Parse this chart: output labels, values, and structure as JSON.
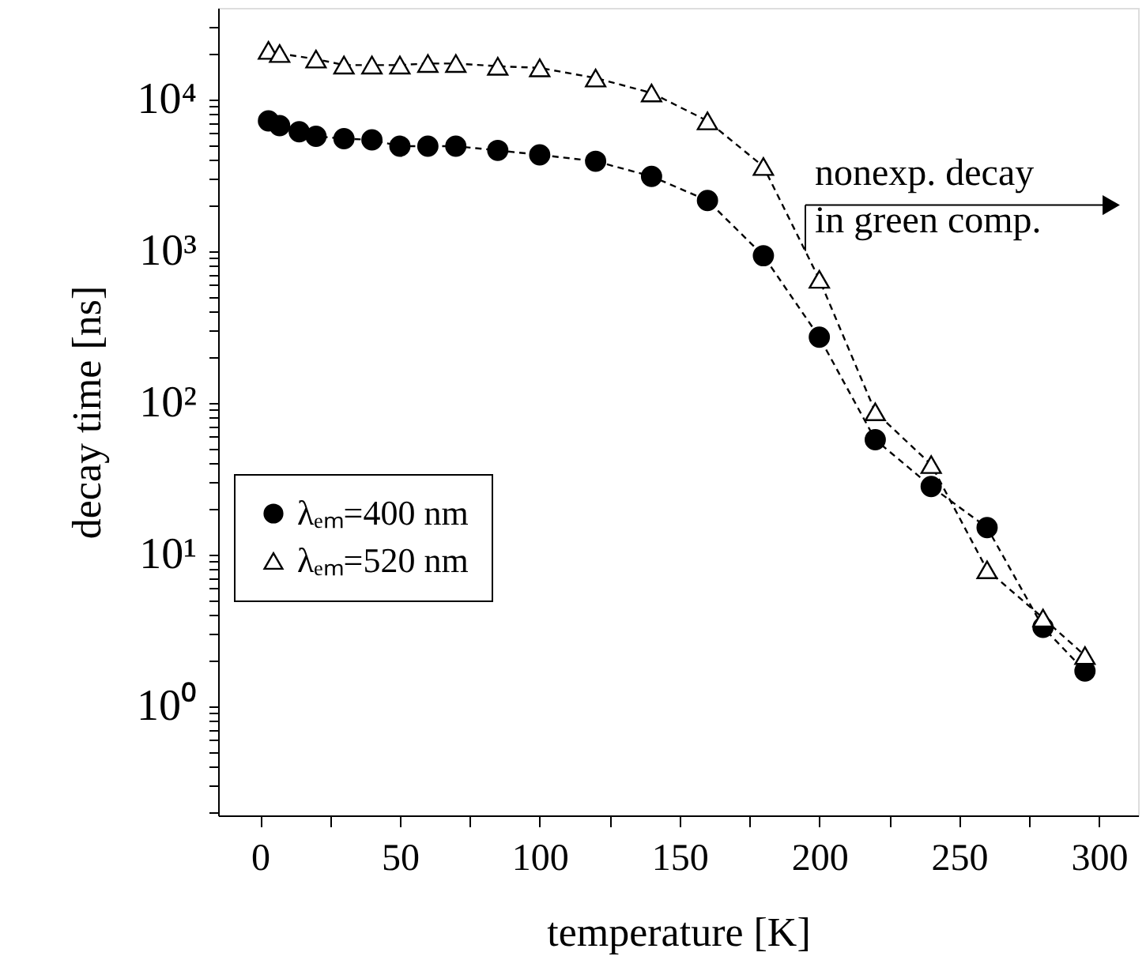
{
  "chart_data": {
    "type": "line",
    "xlabel": "temperature [K]",
    "ylabel": "decay time [ns]",
    "log": "y",
    "grid": false,
    "legend": "left",
    "line_style": "dashed",
    "xlim": [
      -15,
      314
    ],
    "xticks": [
      0,
      {
        "value": 25,
        "label": null
      },
      50,
      {
        "value": 75,
        "label": null
      },
      100,
      {
        "value": 125,
        "label": null
      },
      150,
      {
        "value": 175,
        "label": null
      },
      200,
      {
        "value": 225,
        "label": null
      },
      250,
      {
        "value": 275,
        "label": null
      },
      300
    ],
    "ylim": [
      0.19,
      40000
    ],
    "yticks": [
      {
        "value": 0.2,
        "label": null
      },
      {
        "value": 0.3,
        "label": null
      },
      {
        "value": 0.4,
        "label": null
      },
      {
        "value": 0.5,
        "label": null
      },
      {
        "value": 0.6,
        "label": null
      },
      {
        "value": 0.7,
        "label": null
      },
      {
        "value": 0.8,
        "label": null
      },
      {
        "value": 0.9,
        "label": null
      },
      {
        "value": 1,
        "label": "10⁰"
      },
      {
        "value": 2,
        "label": null
      },
      {
        "value": 3,
        "label": null
      },
      {
        "value": 4,
        "label": null
      },
      {
        "value": 5,
        "label": null
      },
      {
        "value": 6,
        "label": null
      },
      {
        "value": 7,
        "label": null
      },
      {
        "value": 8,
        "label": null
      },
      {
        "value": 9,
        "label": null
      },
      {
        "value": 10,
        "label": "10¹"
      },
      {
        "value": 20,
        "label": null
      },
      {
        "value": 30,
        "label": null
      },
      {
        "value": 40,
        "label": null
      },
      {
        "value": 50,
        "label": null
      },
      {
        "value": 60,
        "label": null
      },
      {
        "value": 70,
        "label": null
      },
      {
        "value": 80,
        "label": null
      },
      {
        "value": 90,
        "label": null
      },
      {
        "value": 100,
        "label": "10²"
      },
      {
        "value": 200,
        "label": null
      },
      {
        "value": 300,
        "label": null
      },
      {
        "value": 400,
        "label": null
      },
      {
        "value": 500,
        "label": null
      },
      {
        "value": 600,
        "label": null
      },
      {
        "value": 700,
        "label": null
      },
      {
        "value": 800,
        "label": null
      },
      {
        "value": 900,
        "label": null
      },
      {
        "value": 1000,
        "label": "10³"
      },
      {
        "value": 2000,
        "label": null
      },
      {
        "value": 3000,
        "label": null
      },
      {
        "value": 4000,
        "label": null
      },
      {
        "value": 5000,
        "label": null
      },
      {
        "value": 6000,
        "label": null
      },
      {
        "value": 7000,
        "label": null
      },
      {
        "value": 8000,
        "label": null
      },
      {
        "value": 9000,
        "label": null
      },
      {
        "value": 10000,
        "label": "10⁴"
      },
      {
        "value": 20000,
        "label": null
      },
      {
        "value": 30000,
        "label": null
      }
    ],
    "series": [
      {
        "name": "λₑₘ=400 nm",
        "color": "#000000",
        "marker": "circle",
        "x": [
          3,
          7,
          14,
          20,
          30,
          40,
          50,
          60,
          70,
          85,
          100,
          120,
          140,
          160,
          180,
          200,
          220,
          240,
          260,
          280,
          295
        ],
        "values": [
          7200,
          6700,
          6100,
          5700,
          5500,
          5400,
          4900,
          4900,
          4900,
          4600,
          4300,
          3900,
          3100,
          2150,
          930,
          270,
          57,
          28,
          15,
          3.3,
          1.7
        ]
      },
      {
        "name": "λₑₘ=520 nm",
        "color": "#000000",
        "marker": "triangle",
        "x": [
          3,
          7,
          20,
          30,
          40,
          50,
          60,
          70,
          85,
          100,
          120,
          140,
          160,
          180,
          200,
          220,
          240,
          260,
          280,
          295
        ],
        "values": [
          21000,
          20000,
          18400,
          16800,
          16800,
          16800,
          17200,
          17200,
          16500,
          16100,
          13800,
          11000,
          7200,
          3600,
          650,
          87,
          39,
          7.9,
          3.8,
          2.15
        ]
      }
    ],
    "annotations": [
      {
        "text": "nonexp. decay\nin green comp.",
        "x": 195,
        "y": 1000
      }
    ]
  }
}
